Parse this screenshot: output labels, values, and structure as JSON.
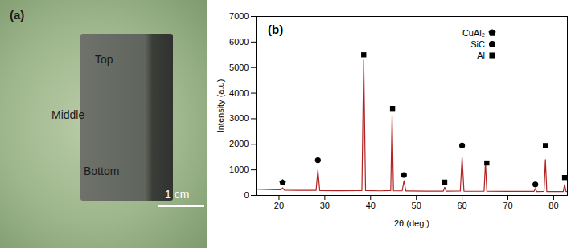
{
  "photo": {
    "panel_label": "(a)",
    "labels": [
      "Top",
      "Middle",
      "Bottom"
    ],
    "scale_bar": "1 cm"
  },
  "chart_data": {
    "type": "line",
    "panel_label": "(b)",
    "x_label": "2θ (deg.)",
    "y_label": "Intensity (a.u)",
    "x": [
      15,
      18,
      20.4,
      20.8,
      21.2,
      24,
      28.1,
      28.5,
      28.9,
      33,
      38.1,
      38.5,
      38.9,
      42,
      44.4,
      44.7,
      45.0,
      46.9,
      47.3,
      47.7,
      52,
      55.9,
      56.2,
      56.5,
      59.6,
      60.0,
      60.4,
      62.5,
      64.8,
      65.1,
      65.4,
      70,
      75.7,
      76.0,
      76.3,
      77.9,
      78.2,
      78.5,
      82.1,
      82.4,
      82.7,
      83
    ],
    "values": [
      250,
      230,
      220,
      290,
      210,
      200,
      200,
      1000,
      190,
      185,
      190,
      5300,
      190,
      180,
      190,
      3100,
      185,
      180,
      580,
      175,
      170,
      170,
      320,
      170,
      175,
      1500,
      170,
      165,
      165,
      1300,
      165,
      160,
      160,
      270,
      155,
      160,
      1400,
      155,
      155,
      430,
      155,
      155
    ],
    "color": "#b22222",
    "xlim": [
      15,
      83
    ],
    "xticks": [
      20,
      30,
      40,
      50,
      60,
      70,
      80
    ],
    "ylim": [
      0,
      7000
    ],
    "yticks": [
      0,
      1000,
      2000,
      3000,
      4000,
      5000,
      6000,
      7000
    ],
    "grid": false,
    "phases": [
      {
        "name": "CuAl₂",
        "marker": "pentagon"
      },
      {
        "name": "SiC",
        "marker": "circle"
      },
      {
        "name": "Al",
        "marker": "square"
      }
    ],
    "peaks": [
      {
        "x": 20.8,
        "y": 500,
        "phase": "CuAl₂"
      },
      {
        "x": 28.5,
        "y": 1380,
        "phase": "SiC"
      },
      {
        "x": 38.5,
        "y": 5500,
        "phase": "Al"
      },
      {
        "x": 44.8,
        "y": 3400,
        "phase": "Al"
      },
      {
        "x": 47.3,
        "y": 800,
        "phase": "SiC"
      },
      {
        "x": 56.2,
        "y": 520,
        "phase": "Al"
      },
      {
        "x": 60.0,
        "y": 1950,
        "phase": "SiC"
      },
      {
        "x": 65.4,
        "y": 1270,
        "phase": "Al"
      },
      {
        "x": 76.0,
        "y": 430,
        "phase": "SiC"
      },
      {
        "x": 78.2,
        "y": 1950,
        "phase": "Al"
      },
      {
        "x": 82.4,
        "y": 700,
        "phase": "Al"
      }
    ]
  }
}
